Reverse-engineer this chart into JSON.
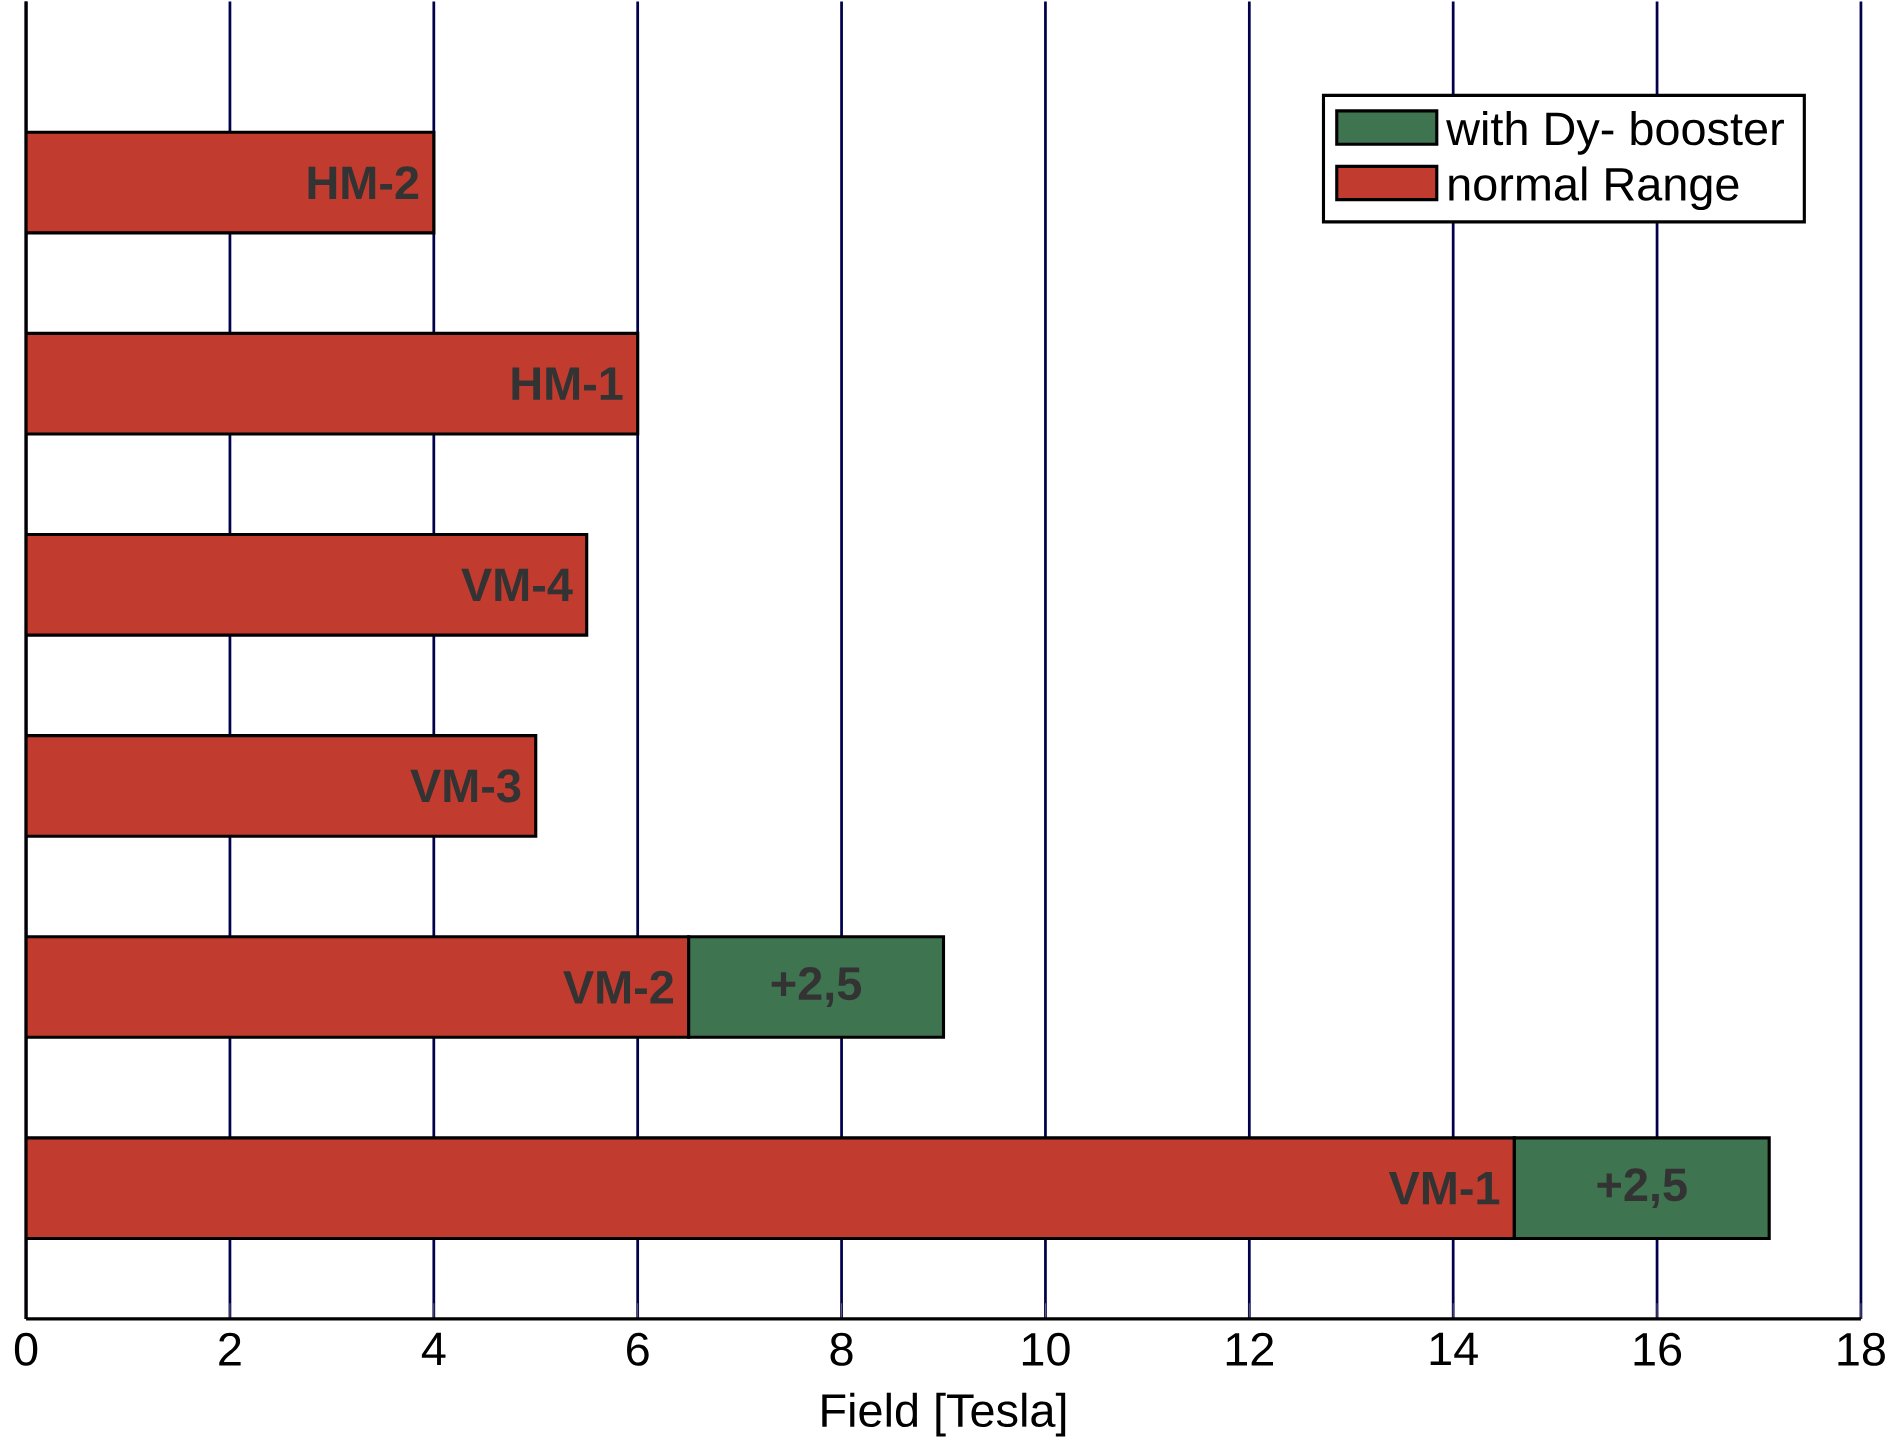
{
  "chart_data": {
    "type": "bar",
    "orientation": "horizontal",
    "stacked": true,
    "xlabel": "Field [Tesla]",
    "categories": [
      "HM-2",
      "HM-1",
      "VM-4",
      "VM-3",
      "VM-2",
      "VM-1"
    ],
    "series": [
      {
        "name": "normal Range",
        "color": "#c23b2f",
        "values": [
          4,
          6,
          5.5,
          5,
          6.5,
          14.6
        ]
      },
      {
        "name": "with Dy- booster",
        "color": "#3e7450",
        "values": [
          null,
          null,
          null,
          null,
          2.5,
          2.5
        ],
        "value_labels": [
          null,
          null,
          null,
          null,
          "+2,5",
          "+2,5"
        ]
      }
    ],
    "xlim": [
      0,
      18
    ],
    "xticks": [
      0,
      2,
      4,
      6,
      8,
      10,
      12,
      14,
      16,
      18
    ],
    "grid": "x",
    "legend": "top right"
  }
}
